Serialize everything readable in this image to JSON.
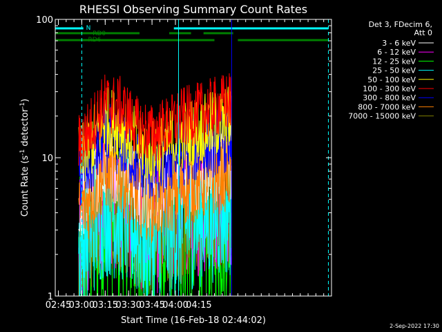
{
  "chart_data": {
    "type": "line",
    "title": "RHESSI Observing Summary Count Rates",
    "xlabel": "Start Time (16-Feb-18 02:44:02)",
    "ylabel_main": "Count Rate (s",
    "ylabel_sup": "-1",
    "ylabel_mid": " detector",
    "ylabel_sup2": "-1",
    "ylabel_end": ")",
    "y_scale": "log",
    "ylim": [
      1,
      100
    ],
    "xlim_minutes": [
      -16,
      161
    ],
    "x_ticks": [
      {
        "label": "02:45",
        "value": -14
      },
      {
        "label": "03:00",
        "value": 1
      },
      {
        "label": "03:15",
        "value": 16
      },
      {
        "label": "03:30",
        "value": 31
      },
      {
        "label": "03:45",
        "value": 46
      },
      {
        "label": "04:00",
        "value": 61
      },
      {
        "label": "04:15",
        "value": 76
      }
    ],
    "y_ticks": [
      {
        "label": "1",
        "value": 1
      },
      {
        "label": "10",
        "value": 10
      },
      {
        "label": "100",
        "value": 100
      }
    ],
    "legend_header": [
      "Det 3, FDecim 6,",
      "Att 0"
    ],
    "series": [
      {
        "name": "3 - 6 keV",
        "color": "#ffffff",
        "mean": 6.0,
        "spread": 0.5
      },
      {
        "name": "6 - 12 keV",
        "color": "#ff00ff",
        "mean": 3.4,
        "spread": 0.9
      },
      {
        "name": "12 - 25 keV",
        "color": "#00ff00",
        "mean": 2.2,
        "spread": 1.1
      },
      {
        "name": "25 - 50 keV",
        "color": "#00ffff",
        "mean": 2.8,
        "spread": 0.9
      },
      {
        "name": "50 - 100 keV",
        "color": "#ffff00",
        "mean": 12.0,
        "spread": 0.45
      },
      {
        "name": "100 - 300 keV",
        "color": "#ff0000",
        "mean": 16.0,
        "spread": 0.4
      },
      {
        "name": "300 - 800 keV",
        "color": "#0000ff",
        "mean": 9.0,
        "spread": 0.45
      },
      {
        "name": "800 - 7000 keV",
        "color": "#ff8000",
        "mean": 5.0,
        "spread": 0.5
      },
      {
        "name": "7000 - 15000 keV",
        "color": "#808000",
        "mean": 2.5,
        "spread": 0.7
      }
    ],
    "data_interval_minutes": [
      -1,
      97
    ],
    "envelope_profile": [
      {
        "t": -1,
        "f": 0.78
      },
      {
        "t": 6,
        "f": 1.0
      },
      {
        "t": 16,
        "f": 1.55
      },
      {
        "t": 26,
        "f": 1.45
      },
      {
        "t": 36,
        "f": 1.05
      },
      {
        "t": 46,
        "f": 0.92
      },
      {
        "t": 56,
        "f": 1.05
      },
      {
        "t": 66,
        "f": 1.22
      },
      {
        "t": 80,
        "f": 1.35
      },
      {
        "t": 97,
        "f": 1.6
      }
    ],
    "flags": [
      {
        "label": "N",
        "color": "#00ffff",
        "segments": [
          [
            -16,
            2
          ],
          [
            60,
            159
          ]
        ],
        "row": 0
      },
      {
        "label": "RD0",
        "color": "#008000",
        "segments": [
          [
            -16,
            38
          ],
          [
            57,
            71
          ],
          [
            79,
            98
          ]
        ],
        "row": 1
      },
      {
        "label": "RD6",
        "color": "#008000",
        "segments": [
          [
            -16,
            86
          ],
          [
            101,
            159
          ]
        ],
        "row": 2
      }
    ],
    "vlines": [
      {
        "x": -16,
        "color": "#00ffff",
        "style": "solid"
      },
      {
        "x": 1,
        "color": "#00ffff",
        "style": "dashed"
      },
      {
        "x": 63,
        "color": "#00ffff",
        "style": "solid"
      },
      {
        "x": 97,
        "color": "#0000ff",
        "style": "solid"
      },
      {
        "x": 159,
        "color": "#00ffff",
        "style": "dashed"
      }
    ],
    "timestamp": "2-Sep-2022 17:30"
  }
}
